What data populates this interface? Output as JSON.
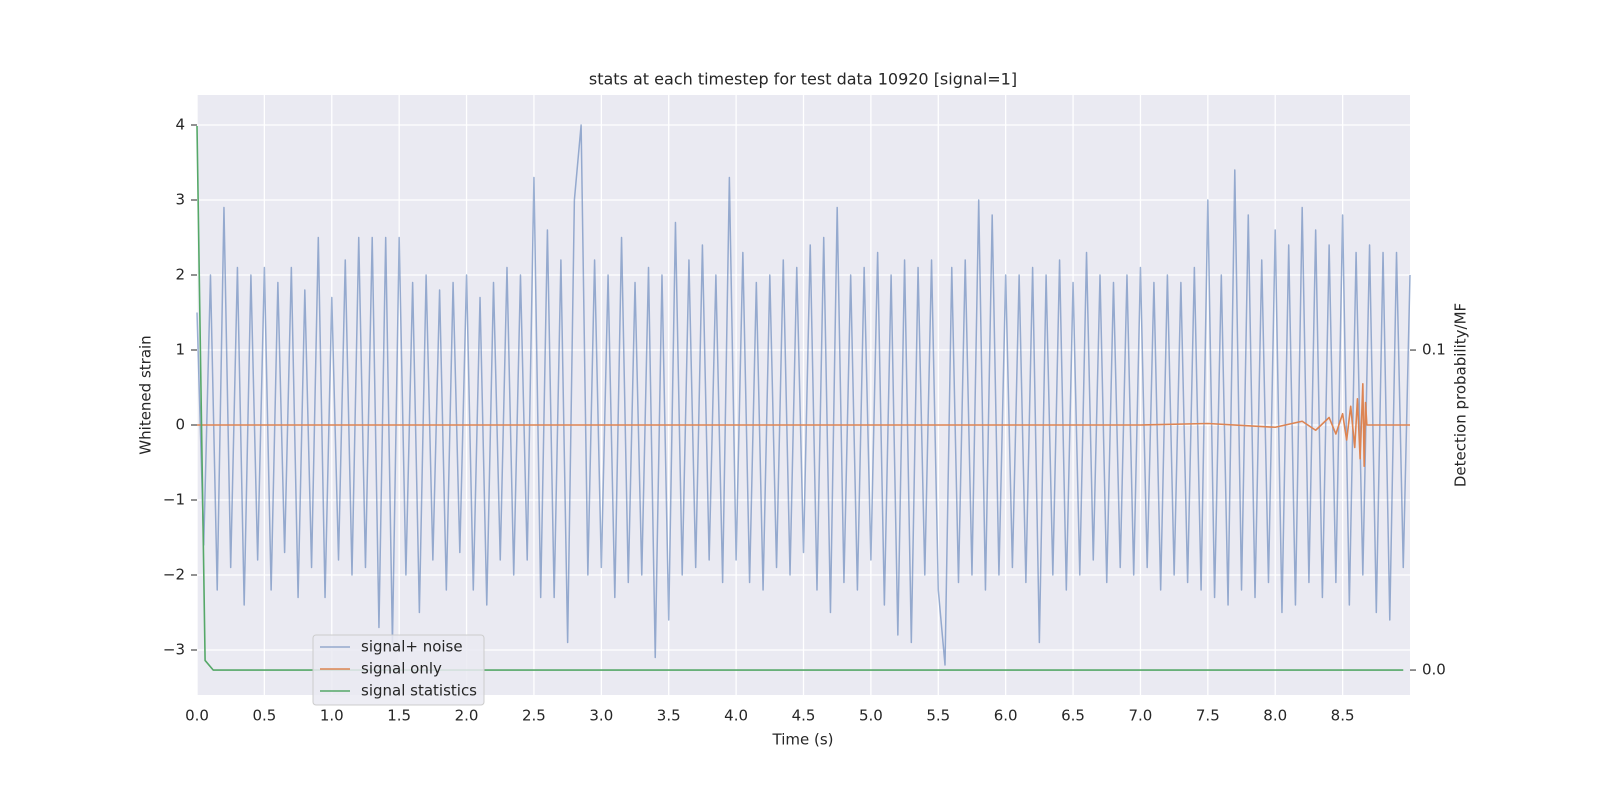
{
  "chart_data": {
    "type": "line",
    "title": "stats at each timestep for test data 10920 [signal=1]",
    "xlabel": "Time (s)",
    "ylabel": "Whitened strain",
    "y2label": "Detection probability/MF",
    "xlim": [
      0,
      9.0
    ],
    "ylim": [
      -3.6,
      4.4
    ],
    "y2lim": [
      -0.0078,
      0.1797
    ],
    "xticks": [
      {
        "value": 0,
        "label": "0.0"
      },
      0.5,
      {
        "value": 1,
        "label": "1.0"
      },
      1.5,
      {
        "value": 2,
        "label": "2.0"
      },
      2.5,
      {
        "value": 3,
        "label": "3.0"
      },
      3.5,
      {
        "value": 4,
        "label": "4.0"
      },
      4.5,
      {
        "value": 5,
        "label": "5.0"
      },
      5.5,
      {
        "value": 6,
        "label": "6.0"
      },
      6.5,
      {
        "value": 7,
        "label": "7.0"
      },
      7.5,
      {
        "value": 8,
        "label": "8.0"
      },
      8.5
    ],
    "yticks": [
      {
        "value": -3,
        "label": "−3"
      },
      {
        "value": -2,
        "label": "−2"
      },
      {
        "value": -1,
        "label": "−1"
      },
      0,
      1,
      2,
      3,
      4
    ],
    "y2ticks": [
      {
        "value": 0,
        "label": "0.0"
      },
      0.1
    ],
    "grid": true,
    "legend_loc": "lower left",
    "series": [
      {
        "name": "signal+ noise",
        "color": "#4c72b0",
        "x": [
          0,
          0.05,
          0.1,
          0.15,
          0.2,
          0.25,
          0.3,
          0.35,
          0.4,
          0.45,
          0.5,
          0.55,
          0.6,
          0.65,
          0.7,
          0.75,
          0.8,
          0.85,
          0.9,
          0.95,
          1,
          1.05,
          1.1,
          1.15,
          1.2,
          1.25,
          1.3,
          1.35,
          1.4,
          1.45,
          1.5,
          1.55,
          1.6,
          1.65,
          1.7,
          1.75,
          1.8,
          1.85,
          1.9,
          1.95,
          2,
          2.05,
          2.1,
          2.15,
          2.2,
          2.25,
          2.3,
          2.35,
          2.4,
          2.45,
          2.5,
          2.55,
          2.6,
          2.65,
          2.7,
          2.75,
          2.8,
          2.85,
          2.9,
          2.95,
          3,
          3.05,
          3.1,
          3.15,
          3.2,
          3.25,
          3.3,
          3.35,
          3.4,
          3.45,
          3.5,
          3.55,
          3.6,
          3.65,
          3.7,
          3.75,
          3.8,
          3.85,
          3.9,
          3.95,
          4,
          4.05,
          4.1,
          4.15,
          4.2,
          4.25,
          4.3,
          4.35,
          4.4,
          4.45,
          4.5,
          4.55,
          4.6,
          4.65,
          4.7,
          4.75,
          4.8,
          4.85,
          4.9,
          4.95,
          5,
          5.05,
          5.1,
          5.15,
          5.2,
          5.25,
          5.3,
          5.35,
          5.4,
          5.45,
          5.5,
          5.55,
          5.6,
          5.65,
          5.7,
          5.75,
          5.8,
          5.85,
          5.9,
          5.95,
          6,
          6.05,
          6.1,
          6.15,
          6.2,
          6.25,
          6.3,
          6.35,
          6.4,
          6.45,
          6.5,
          6.55,
          6.6,
          6.65,
          6.7,
          6.75,
          6.8,
          6.85,
          6.9,
          6.95,
          7,
          7.05,
          7.1,
          7.15,
          7.2,
          7.25,
          7.3,
          7.35,
          7.4,
          7.45,
          7.5,
          7.55,
          7.6,
          7.65,
          7.7,
          7.75,
          7.8,
          7.85,
          7.9,
          7.95,
          8,
          8.05,
          8.1,
          8.15,
          8.2,
          8.25,
          8.3,
          8.35,
          8.4,
          8.45,
          8.5,
          8.55,
          8.6,
          8.65,
          8.7,
          8.75,
          8.8,
          8.85,
          8.9,
          8.95,
          9
        ],
        "values": [
          1.5,
          -1.6,
          2.0,
          -2.2,
          2.9,
          -1.9,
          2.1,
          -2.4,
          2.0,
          -1.8,
          2.1,
          -2.2,
          1.9,
          -1.7,
          2.1,
          -2.3,
          1.8,
          -1.9,
          2.5,
          -2.3,
          1.7,
          -1.8,
          2.2,
          -2.0,
          2.5,
          -1.9,
          2.5,
          -2.7,
          2.5,
          -2.9,
          2.5,
          -2.0,
          1.9,
          -2.5,
          2.0,
          -1.8,
          1.8,
          -2.2,
          1.9,
          -1.7,
          2.0,
          -2.2,
          1.7,
          -2.4,
          1.9,
          -1.8,
          2.1,
          -2.0,
          2.0,
          -1.8,
          3.3,
          -2.3,
          2.6,
          -2.3,
          2.2,
          -2.9,
          3.0,
          4.0,
          -2.0,
          2.2,
          -1.9,
          2.0,
          -2.3,
          2.5,
          -2.1,
          1.9,
          -2.0,
          2.1,
          -3.1,
          2.0,
          -2.6,
          2.7,
          -2.0,
          2.2,
          -1.9,
          2.4,
          -1.8,
          2.0,
          -2.1,
          3.3,
          -1.8,
          2.3,
          -2.1,
          1.9,
          -2.2,
          2.0,
          -1.9,
          2.2,
          -2.0,
          2.1,
          -1.7,
          2.4,
          -2.2,
          2.5,
          -2.5,
          2.9,
          -2.1,
          2.0,
          -2.2,
          2.1,
          -1.8,
          2.3,
          -2.4,
          2.0,
          -2.8,
          2.2,
          -2.9,
          2.1,
          -2.0,
          2.2,
          -2.2,
          -3.2,
          2.1,
          -2.1,
          2.2,
          -2.0,
          3.0,
          -2.2,
          2.8,
          -2.0,
          2.0,
          -1.9,
          2.0,
          -2.1,
          2.1,
          -2.9,
          2.0,
          -2.0,
          2.2,
          -2.2,
          1.9,
          -2.0,
          2.3,
          -1.8,
          2.0,
          -2.1,
          1.9,
          -1.9,
          2.0,
          -2.0,
          2.1,
          -1.9,
          1.9,
          -2.2,
          2.0,
          -2.0,
          1.9,
          -2.1,
          2.1,
          -2.2,
          3.0,
          -2.3,
          2.0,
          -2.4,
          3.4,
          -2.2,
          2.8,
          -2.3,
          2.2,
          -2.1,
          2.6,
          -2.5,
          2.4,
          -2.4,
          2.9,
          -2.1,
          2.6,
          -2.3,
          2.4,
          -2.1,
          2.8,
          -2.4,
          2.3,
          -2.0,
          2.4,
          -2.5,
          2.3,
          -2.6,
          2.3,
          -1.9,
          2.0
        ]
      },
      {
        "name": "signal only",
        "color": "#dd8452",
        "x": [
          0,
          7.0,
          7.5,
          8.0,
          8.2,
          8.3,
          8.4,
          8.45,
          8.5,
          8.53,
          8.56,
          8.59,
          8.61,
          8.63,
          8.65,
          8.66,
          8.67,
          8.68,
          8.7,
          9.0
        ],
        "values": [
          0,
          0,
          0.02,
          -0.03,
          0.05,
          -0.07,
          0.1,
          -0.12,
          0.15,
          -0.2,
          0.25,
          -0.3,
          0.35,
          -0.45,
          0.55,
          -0.55,
          0.3,
          0,
          0,
          0
        ]
      },
      {
        "name": "signal statistics",
        "color": "#55a868",
        "axis": "y2",
        "x": [
          0,
          0.06,
          0.12,
          8.95
        ],
        "values": [
          0.17,
          0.003,
          0,
          0
        ]
      }
    ]
  }
}
